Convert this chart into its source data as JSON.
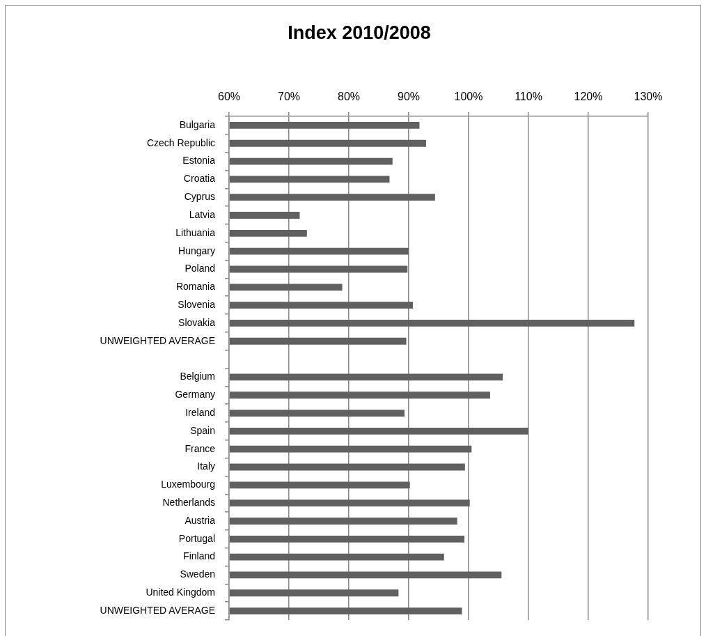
{
  "chart_data": {
    "type": "bar",
    "orientation": "horizontal",
    "title": "Index 2010/2008",
    "categories": [
      "Bulgaria",
      "Czech Republic",
      "Estonia",
      "Croatia",
      "Cyprus",
      "Latvia",
      "Lithuania",
      "Hungary",
      "Poland",
      "Romania",
      "Slovenia",
      "Slovakia",
      "UNWEIGHTED AVERAGE",
      null,
      "Belgium",
      "Germany",
      "Ireland",
      "Spain",
      "France",
      "Italy",
      "Luxembourg",
      "Netherlands",
      "Austria",
      "Portugal",
      "Finland",
      "Sweden",
      "United Kingdom",
      "UNWEIGHTED AVERAGE"
    ],
    "values": [
      91.8,
      92.9,
      87.3,
      86.8,
      94.4,
      71.8,
      73.0,
      90.0,
      89.8,
      78.9,
      90.7,
      127.7,
      89.6,
      null,
      105.7,
      103.6,
      89.3,
      110.0,
      100.5,
      99.4,
      90.2,
      100.2,
      98.1,
      99.3,
      95.9,
      105.5,
      88.3,
      98.9
    ],
    "color": "#606060",
    "xlim": [
      60,
      130
    ],
    "xticks": [
      {
        "value": 60,
        "label": "60%"
      },
      {
        "value": 70,
        "label": "70%"
      },
      {
        "value": 80,
        "label": "80%"
      },
      {
        "value": 90,
        "label": "90%"
      },
      {
        "value": 100,
        "label": "100%"
      },
      {
        "value": 110,
        "label": "110%"
      },
      {
        "value": 120,
        "label": "120%"
      },
      {
        "value": 130,
        "label": "130%"
      }
    ],
    "grid": "x",
    "legend": false
  }
}
